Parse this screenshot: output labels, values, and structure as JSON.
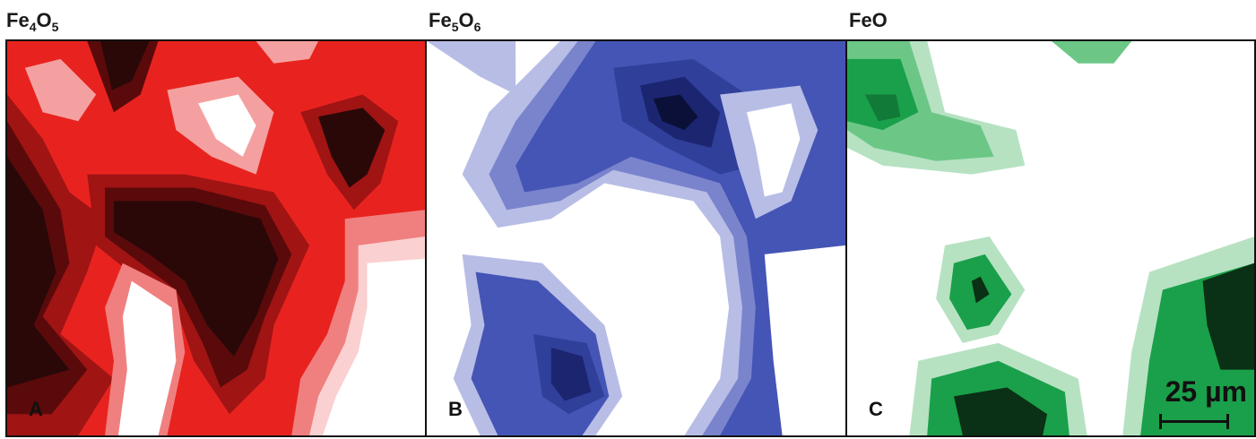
{
  "panels": [
    {
      "formula": {
        "el1": "Fe",
        "n1": "4",
        "el2": "O",
        "n2": "5"
      },
      "letter": "A",
      "color": "#e8231f"
    },
    {
      "formula": {
        "el1": "Fe",
        "n1": "5",
        "el2": "O",
        "n2": "6"
      },
      "letter": "B",
      "color": "#2e3fa0"
    },
    {
      "formula": {
        "el1": "FeO",
        "n1": "",
        "el2": "",
        "n2": ""
      },
      "letter": "C",
      "color": "#1aa04a"
    }
  ],
  "scale_bar": {
    "label": "25 µm"
  }
}
